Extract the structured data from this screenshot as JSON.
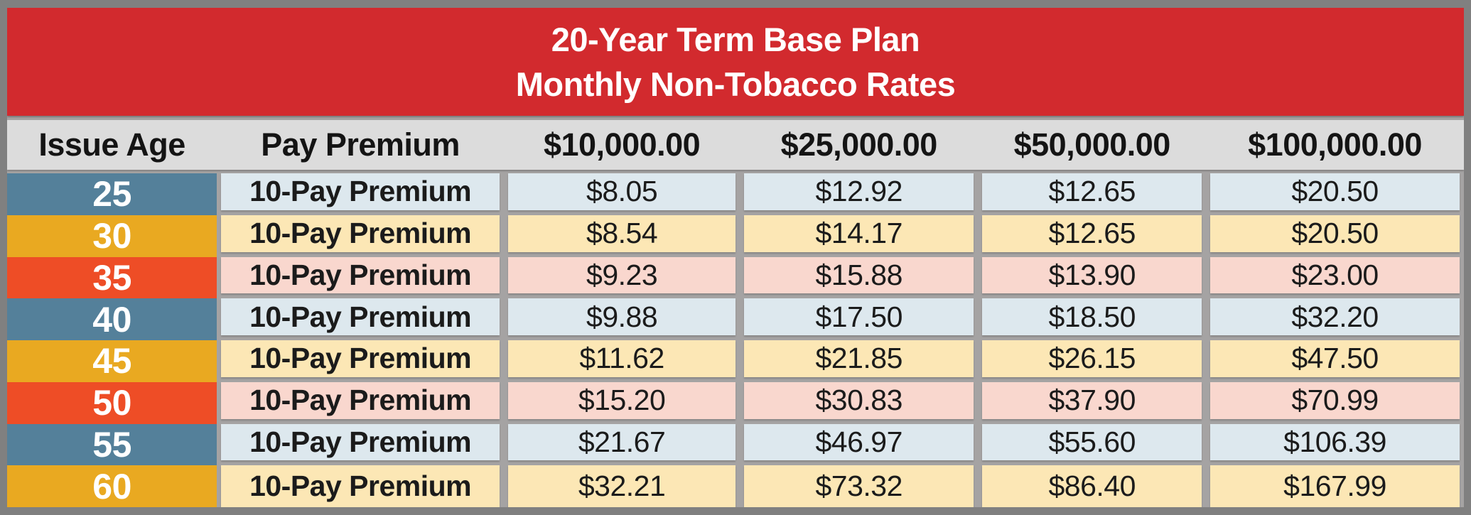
{
  "chart_data": {
    "type": "table",
    "title_lines": [
      "20-Year Term Base Plan",
      "Monthly Non-Tobacco Rates"
    ],
    "columns": [
      "Issue Age",
      "Pay Premium",
      "$10,000.00",
      "$25,000.00",
      "$50,000.00",
      "$100,000.00"
    ],
    "rows": [
      {
        "issue_age": "25",
        "pay_premium": "10-Pay Premium",
        "rates": [
          "$8.05",
          "$12.92",
          "$12.65",
          "$20.50"
        ],
        "theme": "blue"
      },
      {
        "issue_age": "30",
        "pay_premium": "10-Pay Premium",
        "rates": [
          "$8.54",
          "$14.17",
          "$12.65",
          "$20.50"
        ],
        "theme": "gold"
      },
      {
        "issue_age": "35",
        "pay_premium": "10-Pay Premium",
        "rates": [
          "$9.23",
          "$15.88",
          "$13.90",
          "$23.00"
        ],
        "theme": "red"
      },
      {
        "issue_age": "40",
        "pay_premium": "10-Pay Premium",
        "rates": [
          "$9.88",
          "$17.50",
          "$18.50",
          "$32.20"
        ],
        "theme": "blue"
      },
      {
        "issue_age": "45",
        "pay_premium": "10-Pay Premium",
        "rates": [
          "$11.62",
          "$21.85",
          "$26.15",
          "$47.50"
        ],
        "theme": "gold"
      },
      {
        "issue_age": "50",
        "pay_premium": "10-Pay Premium",
        "rates": [
          "$15.20",
          "$30.83",
          "$37.90",
          "$70.99"
        ],
        "theme": "red"
      },
      {
        "issue_age": "55",
        "pay_premium": "10-Pay Premium",
        "rates": [
          "$21.67",
          "$46.97",
          "$55.60",
          "$106.39"
        ],
        "theme": "blue"
      },
      {
        "issue_age": "60",
        "pay_premium": "10-Pay Premium",
        "rates": [
          "$32.21",
          "$73.32",
          "$86.40",
          "$167.99"
        ],
        "theme": "gold"
      }
    ],
    "colors": {
      "title_band_red": "#d22a2e",
      "header_band_gray": "#dcdcdc",
      "age_blue": "#54809a",
      "age_gold": "#e9a921",
      "age_red": "#ee4d26",
      "row_blue": "#dde8ee",
      "row_gold": "#fce7b5",
      "row_red": "#f9d7ce",
      "gap_gray": "#a5a3a3",
      "outer_border_gray": "#808080"
    },
    "layout": {
      "legend": false,
      "grid": false
    }
  }
}
